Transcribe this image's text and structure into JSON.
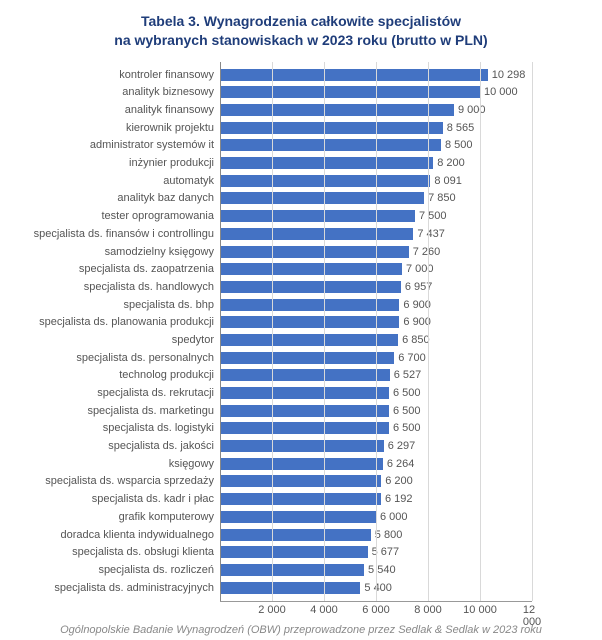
{
  "title": {
    "line1": "Tabela 3. Wynagrodzenia całkowite specjalistów",
    "line2": "na wybranych stanowiskach w 2023 roku (brutto w PLN)",
    "color": "#1f3d7a",
    "fontsize": 14
  },
  "chart": {
    "type": "bar-horizontal",
    "xmin": 0,
    "xmax": 12000,
    "xticks": [
      2000,
      4000,
      6000,
      8000,
      10000,
      12000
    ],
    "xtick_labels": [
      "2 000",
      "4 000",
      "6 000",
      "8 000",
      "10 000",
      "12 000"
    ],
    "bar_color": "#4472c4",
    "grid_color": "#d9d9d9",
    "axis_color": "#888888",
    "label_color": "#555555",
    "category_fontsize": 11,
    "value_fontsize": 11,
    "tick_fontsize": 11,
    "background_color": "#ffffff",
    "rows": [
      {
        "label": "kontroler finansowy",
        "value": 10298,
        "display": "10 298"
      },
      {
        "label": "analityk biznesowy",
        "value": 10000,
        "display": "10 000"
      },
      {
        "label": "analityk finansowy",
        "value": 9000,
        "display": "9 000"
      },
      {
        "label": "kierownik projektu",
        "value": 8565,
        "display": "8 565"
      },
      {
        "label": "administrator systemów it",
        "value": 8500,
        "display": "8 500"
      },
      {
        "label": "inżynier produkcji",
        "value": 8200,
        "display": "8 200"
      },
      {
        "label": "automatyk",
        "value": 8091,
        "display": "8 091"
      },
      {
        "label": "analityk baz danych",
        "value": 7850,
        "display": "7 850"
      },
      {
        "label": "tester oprogramowania",
        "value": 7500,
        "display": "7 500"
      },
      {
        "label": "specjalista ds. finansów i controllingu",
        "value": 7437,
        "display": "7 437"
      },
      {
        "label": "samodzielny księgowy",
        "value": 7260,
        "display": "7 260"
      },
      {
        "label": "specjalista ds. zaopatrzenia",
        "value": 7000,
        "display": "7 000"
      },
      {
        "label": "specjalista ds. handlowych",
        "value": 6957,
        "display": "6 957"
      },
      {
        "label": "specjalista ds.  bhp",
        "value": 6900,
        "display": "6 900"
      },
      {
        "label": "specjalista ds. planowania produkcji",
        "value": 6900,
        "display": "6 900"
      },
      {
        "label": "spedytor",
        "value": 6850,
        "display": "6 850"
      },
      {
        "label": "specjalista ds. personalnych",
        "value": 6700,
        "display": "6 700"
      },
      {
        "label": "technolog produkcji",
        "value": 6527,
        "display": "6 527"
      },
      {
        "label": "specjalista ds. rekrutacji",
        "value": 6500,
        "display": "6 500"
      },
      {
        "label": "specjalista ds. marketingu",
        "value": 6500,
        "display": "6 500"
      },
      {
        "label": "specjalista ds. logistyki",
        "value": 6500,
        "display": "6 500"
      },
      {
        "label": "specjalista ds. jakości",
        "value": 6297,
        "display": "6 297"
      },
      {
        "label": "księgowy",
        "value": 6264,
        "display": "6 264"
      },
      {
        "label": "specjalista ds. wsparcia sprzedaży",
        "value": 6200,
        "display": "6 200"
      },
      {
        "label": "specjalista ds. kadr i płac",
        "value": 6192,
        "display": "6 192"
      },
      {
        "label": "grafik komputerowy",
        "value": 6000,
        "display": "6 000"
      },
      {
        "label": "doradca klienta indywidualnego",
        "value": 5800,
        "display": "5 800"
      },
      {
        "label": "specjalista ds. obsługi klienta",
        "value": 5677,
        "display": "5 677"
      },
      {
        "label": "specjalista ds. rozliczeń",
        "value": 5540,
        "display": "5 540"
      },
      {
        "label": "specjalista ds. administracyjnych",
        "value": 5400,
        "display": "5 400"
      }
    ]
  },
  "footer": {
    "text": "Ogólnopolskie Badanie Wynagrodzeń (OBW) przeprowadzone przez Sedlak & Sedlak w 2023 roku",
    "color": "#888888",
    "fontsize": 11
  }
}
